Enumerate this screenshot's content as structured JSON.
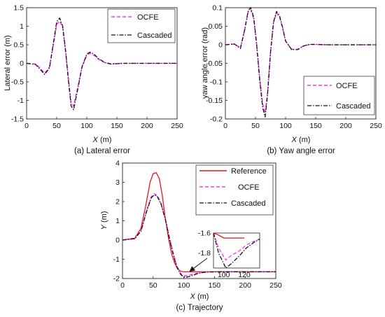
{
  "figure": {
    "captions": [
      "(a) Lateral error",
      "(b) Yaw angle error",
      "(c) Trajectory"
    ]
  },
  "chart_data": [
    {
      "type": "line",
      "id": "a",
      "xlabel_var": "X",
      "xlabel_unit": " (m)",
      "ylabel": "Lateral error (m)",
      "xlim": [
        0,
        250
      ],
      "ylim": [
        -1.5,
        1.5
      ],
      "xticks": [
        "0",
        "50",
        "100",
        "150",
        "200",
        "250"
      ],
      "yticks": [
        "-1.5",
        "-1",
        "-0.5",
        "0",
        "0.5",
        "1",
        "1.5"
      ],
      "legend_position": "top-right",
      "series": [
        {
          "name": "OCFE",
          "color": "#ff33ff",
          "style": "dashed",
          "x": [
            0,
            15,
            22,
            30,
            38,
            45,
            50,
            55,
            60,
            65,
            70,
            74,
            78,
            85,
            92,
            100,
            105,
            112,
            120,
            130,
            140,
            150,
            160,
            180,
            200,
            250
          ],
          "y": [
            0,
            -0.02,
            -0.12,
            -0.27,
            -0.1,
            0.55,
            1.05,
            1.14,
            0.95,
            0.3,
            -0.5,
            -1.05,
            -1.15,
            -0.65,
            -0.1,
            0.22,
            0.27,
            0.22,
            0.1,
            0.02,
            -0.01,
            -0.01,
            0,
            0,
            0,
            0
          ]
        },
        {
          "name": "Cascaded",
          "color": "#111111",
          "style": "dashdot",
          "x": [
            0,
            15,
            22,
            30,
            38,
            45,
            50,
            55,
            60,
            65,
            70,
            74,
            78,
            85,
            92,
            100,
            105,
            112,
            120,
            130,
            140,
            150,
            160,
            180,
            200,
            250
          ],
          "y": [
            0,
            -0.03,
            -0.15,
            -0.3,
            -0.12,
            0.6,
            1.12,
            1.22,
            1.0,
            0.3,
            -0.55,
            -1.15,
            -1.25,
            -0.7,
            -0.1,
            0.25,
            0.3,
            0.25,
            0.12,
            0.02,
            -0.02,
            -0.01,
            0,
            0,
            0,
            0
          ]
        }
      ]
    },
    {
      "type": "line",
      "id": "b",
      "xlabel_var": "X",
      "xlabel_unit": " (m)",
      "ylabel": "yaw angle error (rad)",
      "xlim": [
        0,
        250
      ],
      "ylim": [
        -0.2,
        0.1
      ],
      "xticks": [
        "0",
        "50",
        "100",
        "150",
        "200",
        "250"
      ],
      "yticks": [
        "-0.2",
        "-0.15",
        "-0.1",
        "-0.05",
        "0",
        "0.05",
        "0.1"
      ],
      "legend_position": "bottom-right",
      "series": [
        {
          "name": "OCFE",
          "color": "#ff33ff",
          "style": "dashed",
          "x": [
            0,
            15,
            25,
            32,
            38,
            42,
            47,
            52,
            57,
            62,
            66,
            70,
            75,
            80,
            85,
            90,
            95,
            100,
            110,
            120,
            130,
            140,
            150,
            170,
            200,
            250
          ],
          "y": [
            0,
            0.002,
            -0.008,
            0.04,
            0.09,
            0.095,
            0.07,
            0.0,
            -0.09,
            -0.16,
            -0.185,
            -0.13,
            -0.02,
            0.06,
            0.087,
            0.075,
            0.045,
            0.01,
            -0.012,
            -0.012,
            -0.003,
            0.001,
            0.001,
            0,
            0,
            0
          ]
        },
        {
          "name": "Cascaded",
          "color": "#111111",
          "style": "dashdot",
          "x": [
            0,
            15,
            25,
            32,
            38,
            42,
            47,
            52,
            57,
            62,
            66,
            70,
            75,
            80,
            85,
            90,
            95,
            100,
            110,
            120,
            130,
            140,
            150,
            170,
            200,
            250
          ],
          "y": [
            0,
            0.002,
            -0.01,
            0.04,
            0.093,
            0.1,
            0.075,
            0.0,
            -0.095,
            -0.17,
            -0.195,
            -0.135,
            -0.02,
            0.062,
            0.09,
            0.078,
            0.047,
            0.01,
            -0.013,
            -0.013,
            -0.003,
            0.001,
            0.001,
            0,
            0,
            0
          ]
        }
      ]
    },
    {
      "type": "line",
      "id": "c",
      "xlabel_var": "X",
      "xlabel_unit": " (m)",
      "ylabel_var": "Y",
      "ylabel_unit": " (m)",
      "xlim": [
        0,
        250
      ],
      "ylim": [
        -2,
        4
      ],
      "xticks": [
        "0",
        "50",
        "100",
        "150",
        "200",
        "250"
      ],
      "yticks": [
        "-2",
        "-1",
        "0",
        "1",
        "2",
        "3",
        "4"
      ],
      "legend_position": "top-right",
      "series": [
        {
          "name": "Reference",
          "color": "#e8141b",
          "style": "solid",
          "x": [
            0,
            20,
            30,
            38,
            45,
            50,
            55,
            60,
            65,
            70,
            75,
            80,
            85,
            90,
            95,
            100,
            110,
            120,
            150,
            200,
            250
          ],
          "y": [
            0,
            0.1,
            0.6,
            1.8,
            3.0,
            3.45,
            3.5,
            3.2,
            2.3,
            1.1,
            0.1,
            -0.7,
            -1.2,
            -1.5,
            -1.62,
            -1.65,
            -1.65,
            -1.65,
            -1.65,
            -1.65,
            -1.65
          ]
        },
        {
          "name": "OCFE",
          "color": "#ff33ff",
          "style": "dashed",
          "x": [
            0,
            20,
            30,
            40,
            47,
            52,
            57,
            63,
            70,
            76,
            82,
            88,
            95,
            102,
            108,
            115,
            122,
            130,
            140,
            160,
            200,
            250
          ],
          "y": [
            0,
            0.07,
            0.5,
            1.6,
            2.25,
            2.4,
            2.3,
            1.9,
            1.1,
            0.2,
            -0.6,
            -1.3,
            -1.75,
            -1.87,
            -1.82,
            -1.78,
            -1.72,
            -1.68,
            -1.66,
            -1.65,
            -1.65,
            -1.65
          ]
        },
        {
          "name": "Cascaded",
          "color": "#111111",
          "style": "dashdot",
          "x": [
            0,
            20,
            30,
            40,
            47,
            52,
            57,
            63,
            70,
            76,
            82,
            88,
            95,
            102,
            108,
            115,
            122,
            130,
            140,
            160,
            200,
            250
          ],
          "y": [
            0,
            0.07,
            0.45,
            1.55,
            2.2,
            2.35,
            2.25,
            1.85,
            1.05,
            0.15,
            -0.65,
            -1.35,
            -1.8,
            -1.95,
            -1.9,
            -1.83,
            -1.75,
            -1.69,
            -1.66,
            -1.65,
            -1.65,
            -1.65
          ]
        }
      ],
      "inset": {
        "xlim": [
          90,
          135
        ],
        "ylim": [
          -1.95,
          -1.6
        ],
        "xticks": [
          "100",
          "120"
        ],
        "yticks": [
          "-1.6",
          "-1.8"
        ]
      }
    }
  ]
}
